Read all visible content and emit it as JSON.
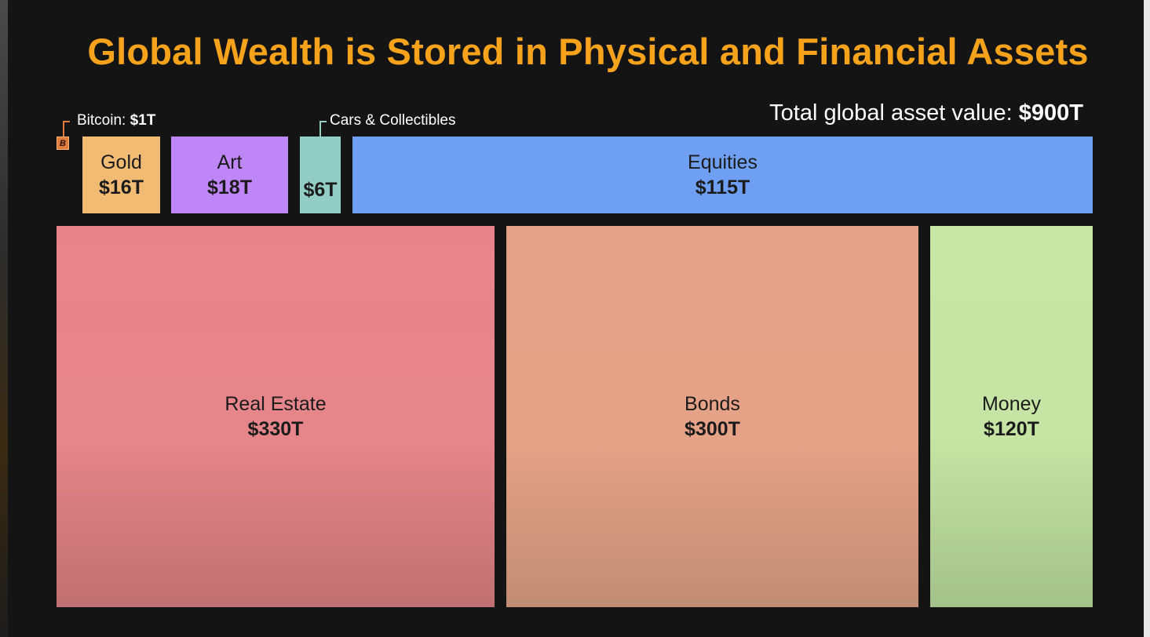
{
  "title": "Global Wealth is Stored in Physical and Financial Assets",
  "total": {
    "prefix": "Total global asset value: ",
    "value": "$900T"
  },
  "chart_data": {
    "type": "treemap",
    "total_value_trillions": 900,
    "items": [
      {
        "id": "bitcoin",
        "label": "Bitcoin",
        "value_text": "$1T",
        "value": 1,
        "color": "#e27c3c",
        "icon": "bitcoin-icon"
      },
      {
        "id": "gold",
        "label": "Gold",
        "value_text": "$16T",
        "value": 16,
        "color": "#f2bb74"
      },
      {
        "id": "art",
        "label": "Art",
        "value_text": "$18T",
        "value": 18,
        "color": "#bf86f8"
      },
      {
        "id": "cars",
        "label": "Cars & Collectibles",
        "value_text": "$6T",
        "value": 6,
        "color": "#92cec5"
      },
      {
        "id": "equities",
        "label": "Equities",
        "value_text": "$115T",
        "value": 115,
        "color": "#6f9ff2"
      },
      {
        "id": "realestate",
        "label": "Real Estate",
        "value_text": "$330T",
        "value": 330,
        "color": "#e8838a",
        "color_bottom": "#c07072"
      },
      {
        "id": "bonds",
        "label": "Bonds",
        "value_text": "$300T",
        "value": 300,
        "color": "#e6a288",
        "color_bottom": "#c18d74"
      },
      {
        "id": "money",
        "label": "Money",
        "value_text": "$120T",
        "value": 120,
        "color": "#c8e6a5",
        "color_bottom": "#a3c28a"
      }
    ]
  }
}
